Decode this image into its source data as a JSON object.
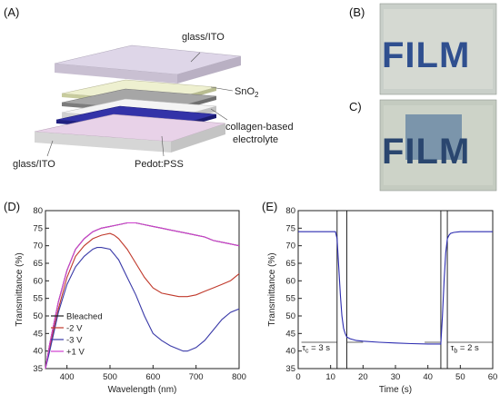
{
  "panel_labels": {
    "a": "(A)",
    "b": "(B)",
    "c": "C)",
    "d": "(D)",
    "e": "(E)"
  },
  "device_layers": {
    "top_glass": "glass/ITO",
    "sno2": "SnO",
    "sno2_sub": "2",
    "electrolyte_line1": "collagen-based",
    "electrolyte_line2": "electrolyte",
    "bottom_glass": "glass/ITO",
    "pedot": "Pedot:PSS"
  },
  "photos": {
    "text": "FILM"
  },
  "colors": {
    "bleached": "#222222",
    "minus2v": "#c0392b",
    "minus3v": "#3a3aa8",
    "plus1v": "#d040d0",
    "blue_curve": "#2b2bb0",
    "glass_top": "#ddd3e6",
    "glass_bottom": "#e6cfe6",
    "sno2_layer": "#e3e8c8",
    "gray_layer": "#9a9a9a",
    "pedot_layer": "#2d2d9a",
    "film_letters": "#2f4f8f",
    "photo_bg": "#c8cfc8"
  },
  "chart_data": [
    {
      "type": "line",
      "xlabel": "Wavelength (nm)",
      "ylabel": "Transmittance (%)",
      "xlim": [
        350,
        800
      ],
      "ylim": [
        35,
        80
      ],
      "xticks": [
        400,
        500,
        600,
        700,
        800
      ],
      "yticks": [
        35,
        40,
        45,
        50,
        55,
        60,
        65,
        70,
        75,
        80
      ],
      "legend_position": "bottom-left",
      "series": [
        {
          "name": "Bleached",
          "colorKey": "bleached",
          "x": [
            350,
            360,
            380,
            400,
            420,
            440,
            460,
            480,
            500,
            520,
            540,
            560,
            580,
            600,
            620,
            640,
            660,
            680,
            700,
            720,
            740,
            760,
            780,
            800
          ],
          "y": [
            33,
            42,
            54,
            63,
            69,
            72,
            74,
            75,
            75.5,
            76,
            76.5,
            76.5,
            76,
            75.5,
            75,
            74.5,
            74,
            73.5,
            73,
            72.5,
            71.5,
            71,
            70.5,
            70
          ]
        },
        {
          "name": "-2 V",
          "colorKey": "minus2v",
          "x": [
            350,
            360,
            380,
            400,
            420,
            440,
            460,
            480,
            500,
            510,
            520,
            540,
            560,
            580,
            600,
            620,
            640,
            660,
            680,
            700,
            720,
            740,
            760,
            780,
            800
          ],
          "y": [
            33,
            41,
            52,
            61,
            67,
            70,
            72,
            73,
            73.5,
            73,
            72,
            69,
            65,
            61,
            58,
            56.5,
            56,
            55.5,
            55.5,
            56,
            57,
            58,
            59,
            60,
            62
          ]
        },
        {
          "name": "-3 V",
          "colorKey": "minus3v",
          "x": [
            350,
            360,
            380,
            400,
            420,
            440,
            460,
            470,
            480,
            500,
            520,
            540,
            560,
            580,
            600,
            620,
            640,
            660,
            670,
            680,
            700,
            720,
            740,
            760,
            780,
            800
          ],
          "y": [
            33,
            40,
            51,
            59,
            64,
            67,
            69,
            69.5,
            69.5,
            69,
            66,
            61,
            56,
            50,
            45,
            43,
            41.5,
            40.5,
            40,
            40,
            41,
            43,
            46,
            49,
            51,
            52
          ]
        },
        {
          "name": "+1 V",
          "colorKey": "plus1v",
          "x": [
            350,
            360,
            380,
            400,
            420,
            440,
            460,
            480,
            500,
            520,
            540,
            560,
            580,
            600,
            620,
            640,
            660,
            680,
            700,
            720,
            740,
            760,
            780,
            800
          ],
          "y": [
            33,
            42,
            54,
            63,
            69,
            72,
            74,
            75,
            75.5,
            76,
            76.5,
            76.5,
            76,
            75.5,
            75,
            74.5,
            74,
            73.5,
            73,
            72.5,
            71.5,
            71,
            70.5,
            70
          ]
        }
      ]
    },
    {
      "type": "line",
      "xlabel": "Time (s)",
      "ylabel": "Transmittance (%)",
      "xlim": [
        0,
        60
      ],
      "ylim": [
        35,
        80
      ],
      "xticks": [
        0,
        10,
        20,
        30,
        40,
        50,
        60
      ],
      "yticks": [
        35,
        40,
        45,
        50,
        55,
        60,
        65,
        70,
        75,
        80
      ],
      "vlines": [
        12,
        15,
        44,
        46
      ],
      "annotations": [
        {
          "text": "τ",
          "sub": "c",
          "rest": " = 3 s"
        },
        {
          "text": "τ",
          "sub": "b",
          "rest": " = 2 s"
        }
      ],
      "series": [
        {
          "colorKey": "blue_curve",
          "x": [
            0,
            5,
            10,
            11.5,
            12,
            12.5,
            13,
            13.5,
            14,
            14.5,
            15,
            16,
            18,
            20,
            25,
            30,
            35,
            40,
            43,
            44,
            44.5,
            45,
            45.5,
            46,
            46.5,
            47,
            48,
            50,
            55,
            60
          ],
          "y": [
            74,
            74,
            74,
            74,
            72,
            64,
            56,
            50,
            46.5,
            45,
            44,
            43.5,
            43,
            42.8,
            42.5,
            42.3,
            42.1,
            42,
            42,
            42,
            50,
            60,
            68,
            72,
            73,
            73.5,
            73.8,
            74,
            74,
            74
          ]
        }
      ]
    }
  ]
}
